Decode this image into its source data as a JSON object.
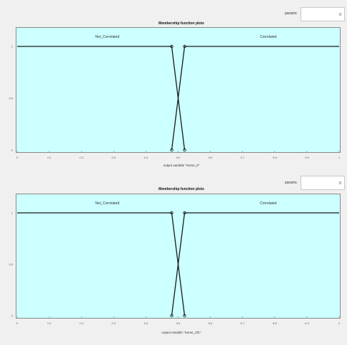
{
  "plots": [
    {
      "param_label": "params",
      "param_value": "0",
      "title": "Membership function plots",
      "x_label": "output variable \"Some_0\"",
      "x_ticks": [
        "0",
        "0.1",
        "0.2",
        "0.3",
        "0.4",
        "0.5",
        "0.6",
        "0.7",
        "0.8",
        "0.9",
        "1"
      ],
      "y_ticks": [
        "1",
        "0.5",
        "0"
      ],
      "mf_labels": [
        "Not_Correlated",
        "Correlated"
      ]
    },
    {
      "param_label": "params",
      "param_value": "0",
      "title": "Membership function plots",
      "x_label": "output variable \"Some_1fC\"",
      "x_ticks": [
        "0",
        "0.1",
        "0.2",
        "0.3",
        "0.4",
        "0.5",
        "0.6",
        "0.7",
        "0.8",
        "0.9",
        "1"
      ],
      "y_ticks": [
        "1",
        "0.5",
        "0"
      ],
      "mf_labels": [
        "Not_Correlated",
        "Correlated"
      ]
    }
  ],
  "chart_data": [
    {
      "type": "line",
      "title": "Membership function plots",
      "xlabel": "output variable \"Some_0\"",
      "xlim": [
        0,
        1
      ],
      "ylim": [
        0,
        1
      ],
      "series": [
        {
          "name": "Not_Correlated",
          "x": [
            0,
            0.48,
            0.52
          ],
          "y": [
            1,
            1,
            0
          ]
        },
        {
          "name": "Correlated",
          "x": [
            0.48,
            0.52,
            1
          ],
          "y": [
            0,
            1,
            1
          ]
        }
      ]
    },
    {
      "type": "line",
      "title": "Membership function plots",
      "xlabel": "output variable \"Some_1fC\"",
      "xlim": [
        0,
        1
      ],
      "ylim": [
        0,
        1
      ],
      "series": [
        {
          "name": "Not_Correlated",
          "x": [
            0,
            0.48,
            0.52
          ],
          "y": [
            1,
            1,
            0
          ]
        },
        {
          "name": "Correlated",
          "x": [
            0.48,
            0.52,
            1
          ],
          "y": [
            0,
            1,
            1
          ]
        }
      ]
    }
  ]
}
